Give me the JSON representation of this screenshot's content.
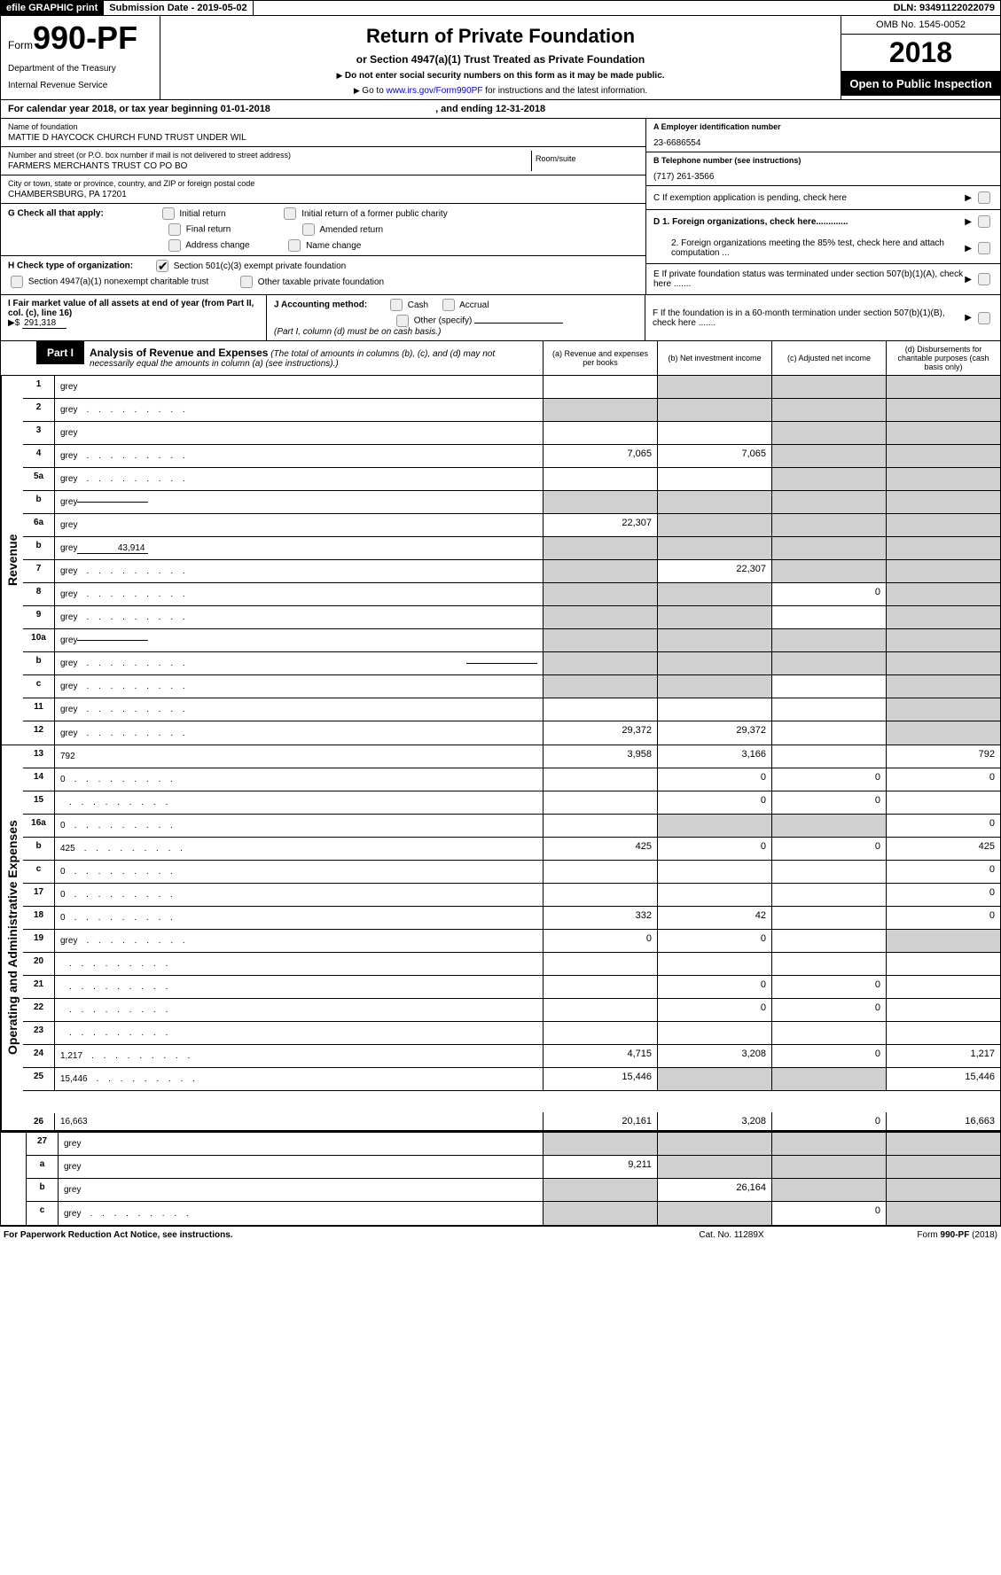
{
  "topbar": {
    "efile": "efile GRAPHIC print",
    "subdate_lbl": "Submission Date - ",
    "subdate": "2019-05-02",
    "dln_lbl": "DLN: ",
    "dln": "93491122022079"
  },
  "header": {
    "form_word": "Form",
    "form_num": "990-PF",
    "dept": "Department of the Treasury",
    "irs": "Internal Revenue Service",
    "title": "Return of Private Foundation",
    "subtitle": "or Section 4947(a)(1) Trust Treated as Private Foundation",
    "note1": "Do not enter social security numbers on this form as it may be made public.",
    "note2_pre": "Go to ",
    "note2_link": "www.irs.gov/Form990PF",
    "note2_post": " for instructions and the latest information.",
    "omb": "OMB No. 1545-0052",
    "year": "2018",
    "open": "Open to Public Inspection"
  },
  "calyear": {
    "pre": "For calendar year 2018, or tax year beginning ",
    "begin": "01-01-2018",
    "mid": ", and ending ",
    "end": "12-31-2018"
  },
  "ident": {
    "name_lbl": "Name of foundation",
    "name": "MATTIE D HAYCOCK CHURCH FUND TRUST UNDER WIL",
    "addr_lbl": "Number and street (or P.O. box number if mail is not delivered to street address)",
    "addr": "FARMERS MERCHANTS TRUST CO PO BO",
    "room_lbl": "Room/suite",
    "city_lbl": "City or town, state or province, country, and ZIP or foreign postal code",
    "city": "CHAMBERSBURG, PA  17201",
    "a_lbl": "A Employer identification number",
    "a_val": "23-6686554",
    "b_lbl": "B Telephone number (see instructions)",
    "b_val": "(717) 261-3566",
    "c_lbl": "C  If exemption application is pending, check here",
    "d1": "D 1. Foreign organizations, check here.............",
    "d2": "2. Foreign organizations meeting the 85% test, check here and attach computation ...",
    "e_lbl": "E  If private foundation status was terminated under section 507(b)(1)(A), check here .......",
    "f_lbl": "F  If the foundation is in a 60-month termination under section 507(b)(1)(B), check here ......."
  },
  "checks": {
    "g_lbl": "G Check all that apply:",
    "g_opts": [
      "Initial return",
      "Initial return of a former public charity",
      "Final return",
      "Amended return",
      "Address change",
      "Name change"
    ],
    "h_lbl": "H Check type of organization:",
    "h_opts": [
      "Section 501(c)(3) exempt private foundation",
      "Section 4947(a)(1) nonexempt charitable trust",
      "Other taxable private foundation"
    ],
    "i_lbl": "I Fair market value of all assets at end of year (from Part II, col. (c), line 16)",
    "i_prefix": "▶$",
    "i_val": "291,318",
    "j_lbl": "J Accounting method:",
    "j_opts": [
      "Cash",
      "Accrual",
      "Other (specify)"
    ],
    "j_note": "(Part I, column (d) must be on cash basis.)"
  },
  "part1": {
    "label": "Part I",
    "title": "Analysis of Revenue and Expenses",
    "title_note": "(The total of amounts in columns (b), (c), and (d) may not necessarily equal the amounts in column (a) (see instructions).)",
    "col_a": "(a)    Revenue and expenses per books",
    "col_b": "(b)    Net investment income",
    "col_c": "(c)    Adjusted net income",
    "col_d": "(d)    Disbursements for charitable purposes (cash basis only)"
  },
  "side_labels": {
    "revenue": "Revenue",
    "expenses": "Operating and Administrative Expenses"
  },
  "rows": [
    {
      "n": "1",
      "d": "grey",
      "a": "",
      "b": "grey",
      "c": "grey"
    },
    {
      "n": "2",
      "d": "grey",
      "dots": true,
      "a": "grey",
      "b": "grey",
      "c": "grey"
    },
    {
      "n": "3",
      "d": "grey",
      "a": "",
      "b": "",
      "c": "grey"
    },
    {
      "n": "4",
      "d": "grey",
      "dots": true,
      "a": "7,065",
      "b": "7,065",
      "c": "grey"
    },
    {
      "n": "5a",
      "d": "grey",
      "dots": true,
      "a": "",
      "b": "",
      "c": "grey"
    },
    {
      "n": "b",
      "d": "grey",
      "inline": "",
      "a": "grey",
      "b": "grey",
      "c": "grey"
    },
    {
      "n": "6a",
      "d": "grey",
      "a": "22,307",
      "b": "grey",
      "c": "grey"
    },
    {
      "n": "b",
      "d": "grey",
      "inline": "43,914",
      "a": "grey",
      "b": "grey",
      "c": "grey"
    },
    {
      "n": "7",
      "d": "grey",
      "dots": true,
      "a": "grey",
      "b": "22,307",
      "c": "grey"
    },
    {
      "n": "8",
      "d": "grey",
      "dots": true,
      "a": "grey",
      "b": "grey",
      "c": "0"
    },
    {
      "n": "9",
      "d": "grey",
      "dots": true,
      "a": "grey",
      "b": "grey",
      "c": ""
    },
    {
      "n": "10a",
      "d": "grey",
      "inline": "",
      "a": "grey",
      "b": "grey",
      "c": "grey"
    },
    {
      "n": "b",
      "d": "grey",
      "dots": true,
      "inline": "",
      "a": "grey",
      "b": "grey",
      "c": "grey"
    },
    {
      "n": "c",
      "d": "grey",
      "dots": true,
      "a": "grey",
      "b": "grey",
      "c": ""
    },
    {
      "n": "11",
      "d": "grey",
      "dots": true,
      "a": "",
      "b": "",
      "c": ""
    },
    {
      "n": "12",
      "d": "grey",
      "dots": true,
      "a": "29,372",
      "b": "29,372",
      "c": ""
    }
  ],
  "exp_rows": [
    {
      "n": "13",
      "d": "792",
      "a": "3,958",
      "b": "3,166",
      "c": ""
    },
    {
      "n": "14",
      "d": "0",
      "dots": true,
      "a": "",
      "b": "0",
      "c": "0"
    },
    {
      "n": "15",
      "d": "",
      "dots": true,
      "a": "",
      "b": "0",
      "c": "0"
    },
    {
      "n": "16a",
      "d": "0",
      "dots": true,
      "a": "",
      "b": "grey",
      "c": "grey"
    },
    {
      "n": "b",
      "d": "425",
      "dots": true,
      "a": "425",
      "b": "0",
      "c": "0"
    },
    {
      "n": "c",
      "d": "0",
      "dots": true,
      "a": "",
      "b": "",
      "c": ""
    },
    {
      "n": "17",
      "d": "0",
      "dots": true,
      "a": "",
      "b": "",
      "c": ""
    },
    {
      "n": "18",
      "d": "0",
      "dots": true,
      "a": "332",
      "b": "42",
      "c": ""
    },
    {
      "n": "19",
      "d": "grey",
      "dots": true,
      "a": "0",
      "b": "0",
      "c": ""
    },
    {
      "n": "20",
      "d": "",
      "dots": true,
      "a": "",
      "b": "",
      "c": ""
    },
    {
      "n": "21",
      "d": "",
      "dots": true,
      "a": "",
      "b": "0",
      "c": "0"
    },
    {
      "n": "22",
      "d": "",
      "dots": true,
      "a": "",
      "b": "0",
      "c": "0"
    },
    {
      "n": "23",
      "d": "",
      "dots": true,
      "a": "",
      "b": "",
      "c": ""
    },
    {
      "n": "24",
      "d": "1,217",
      "dots": true,
      "a": "4,715",
      "b": "3,208",
      "c": "0"
    },
    {
      "n": "25",
      "d": "15,446",
      "dots": true,
      "a": "15,446",
      "b": "grey",
      "c": "grey"
    },
    {
      "n": "26",
      "d": "16,663",
      "a": "20,161",
      "b": "3,208",
      "c": "0",
      "tall": true
    }
  ],
  "sub_rows": [
    {
      "n": "27",
      "d": "grey",
      "a": "grey",
      "b": "grey",
      "c": "grey"
    },
    {
      "n": "a",
      "d": "grey",
      "a": "9,211",
      "b": "grey",
      "c": "grey"
    },
    {
      "n": "b",
      "d": "grey",
      "a": "grey",
      "b": "26,164",
      "c": "grey"
    },
    {
      "n": "c",
      "d": "grey",
      "dots": true,
      "a": "grey",
      "b": "grey",
      "c": "0"
    }
  ],
  "footer": {
    "left": "For Paperwork Reduction Act Notice, see instructions.",
    "mid": "Cat. No. 11289X",
    "right": "Form 990-PF (2018)"
  }
}
